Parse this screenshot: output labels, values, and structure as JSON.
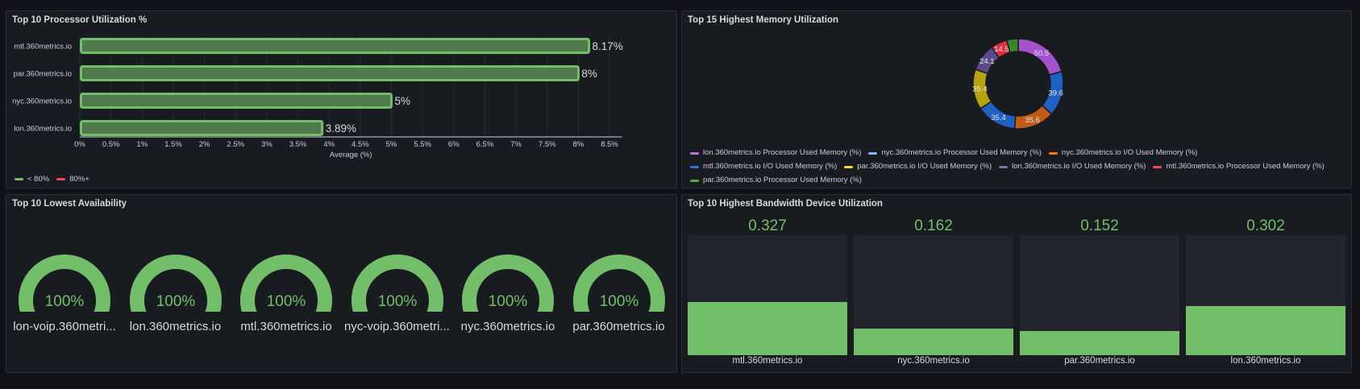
{
  "panels": {
    "cpu": {
      "title": "Top 10 Processor Utilization %"
    },
    "memory": {
      "title": "Top 15 Highest Memory Utilization"
    },
    "availability": {
      "title": "Top 10 Lowest Availability"
    },
    "bandwidth": {
      "title": "Top 10 Highest Bandwidth Device Utilization"
    }
  },
  "cpu_legend": [
    {
      "label": "< 80%",
      "color": "#73bf69"
    },
    {
      "label": "80%+",
      "color": "#f2495c"
    }
  ],
  "memory_legend": [
    {
      "label": "lon.360metrics.io Processor Used Memory (%)",
      "color": "#b877d9"
    },
    {
      "label": "nyc.360metrics.io Processor Used Memory (%)",
      "color": "#8ab8ff"
    },
    {
      "label": "nyc.360metrics.io I/O Used Memory (%)",
      "color": "#ff780a"
    },
    {
      "label": "mtl.360metrics.io I/O Used Memory (%)",
      "color": "#3274d9"
    },
    {
      "label": "par.360metrics.io I/O Used Memory (%)",
      "color": "#fade2a"
    },
    {
      "label": "lon.360metrics.io I/O Used Memory (%)",
      "color": "#806eb7"
    },
    {
      "label": "mtl.360metrics.io Processor Used Memory (%)",
      "color": "#f2495c"
    },
    {
      "label": "par.360metrics.io Processor Used Memory (%)",
      "color": "#56a64b"
    }
  ],
  "gauges": [
    {
      "name": "lon-voip.360metri...",
      "value": "100%",
      "fraction": 1.0
    },
    {
      "name": "lon.360metrics.io",
      "value": "100%",
      "fraction": 1.0
    },
    {
      "name": "mtl.360metrics.io",
      "value": "100%",
      "fraction": 1.0
    },
    {
      "name": "nyc-voip.360metri...",
      "value": "100%",
      "fraction": 1.0
    },
    {
      "name": "nyc.360metrics.io",
      "value": "100%",
      "fraction": 1.0
    },
    {
      "name": "par.360metrics.io",
      "value": "100%",
      "fraction": 1.0
    }
  ],
  "bandwidth": [
    {
      "name": "mtl.360metrics.io",
      "value": "0.327",
      "fraction": 0.44
    },
    {
      "name": "nyc.360metrics.io",
      "value": "0.162",
      "fraction": 0.22
    },
    {
      "name": "par.360metrics.io",
      "value": "0.152",
      "fraction": 0.2
    },
    {
      "name": "lon.360metrics.io",
      "value": "0.302",
      "fraction": 0.41
    }
  ],
  "chart_data": [
    {
      "type": "bar",
      "orientation": "horizontal",
      "title": "Top 10 Processor Utilization %",
      "xlabel": "Average (%)",
      "categories": [
        "mtl.360metrics.io",
        "par.360metrics.io",
        "nyc.360metrics.io",
        "lon.360metrics.io"
      ],
      "values": [
        8.17,
        8,
        5,
        3.89
      ],
      "data_labels": [
        "8.17%",
        "8%",
        "5%",
        "3.89%"
      ],
      "xlim": [
        0,
        8.7
      ],
      "xticks": [
        "0%",
        "0.5%",
        "1%",
        "1.5%",
        "2%",
        "2.5%",
        "3%",
        "3.5%",
        "4%",
        "4.5%",
        "5%",
        "5.5%",
        "6%",
        "6.5%",
        "7%",
        "7.5%",
        "8%",
        "8.5%"
      ],
      "grid": true,
      "legend": "bottom-left"
    },
    {
      "type": "pie",
      "subtype": "donut",
      "title": "Top 15 Highest Memory Utilization",
      "values": [
        50.5,
        39.6,
        35.6,
        35.4,
        35.4,
        24.1,
        14.5,
        10
      ],
      "labels": [
        "50.5",
        "39.6",
        "35.6",
        "35.4",
        "35.4",
        "24.1",
        "14.5",
        ""
      ],
      "colors": [
        "#a352cc",
        "#1f60c4",
        "#c15c17",
        "#1f60c4",
        "#b8a10f",
        "#5a4a8a",
        "#e02f44",
        "#37872d"
      ],
      "legend": "bottom"
    }
  ]
}
